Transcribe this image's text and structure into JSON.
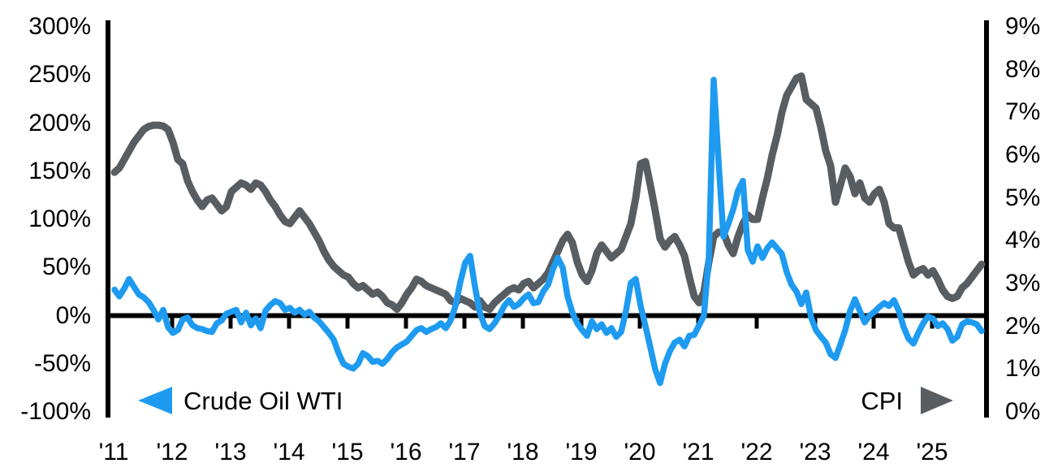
{
  "legend": {
    "wti_label": "Crude Oil WTI",
    "cpi_label": "CPI"
  },
  "colors": {
    "wti_blue": "#1E9BF0",
    "cpi_gray": "#585D62",
    "axis_black": "#000000",
    "background": "#FFFFFF"
  },
  "chart_data": {
    "type": "line",
    "title": "",
    "frequency": "monthly",
    "start": "2011-01",
    "end": "2025-11",
    "grid": "off",
    "legend_position": "bottom-inside",
    "x_tick_labels": [
      "'11",
      "'12",
      "'13",
      "'14",
      "'15",
      "'16",
      "'17",
      "'18",
      "'19",
      "'20",
      "'21",
      "'22",
      "'23",
      "'24",
      "'25"
    ],
    "left_axis": {
      "title": "",
      "unit": "%",
      "min": -100,
      "max": 300,
      "tick_labels": [
        "300%",
        "250%",
        "200%",
        "150%",
        "100%",
        "50%",
        "0%",
        "-50%",
        "-100%"
      ],
      "tick_values": [
        300,
        250,
        200,
        150,
        100,
        50,
        0,
        -50,
        -100
      ]
    },
    "right_axis": {
      "title": "",
      "unit": "%",
      "min": 0,
      "max": 9,
      "tick_labels": [
        "9%",
        "8%",
        "7%",
        "6%",
        "5%",
        "4%",
        "3%",
        "2%",
        "1%",
        "0%"
      ],
      "tick_values": [
        9,
        8,
        7,
        6,
        5,
        4,
        3,
        2,
        1,
        0
      ]
    },
    "series": [
      {
        "name": "CPI",
        "axis": "right",
        "color": "#585D62",
        "stroke_width": 9,
        "values": [
          5.6,
          5.7,
          5.9,
          6.1,
          6.3,
          6.45,
          6.6,
          6.67,
          6.7,
          6.7,
          6.68,
          6.6,
          6.3,
          5.9,
          5.8,
          5.4,
          5.15,
          4.95,
          4.8,
          4.95,
          5.0,
          4.85,
          4.7,
          4.8,
          5.15,
          5.25,
          5.35,
          5.3,
          5.2,
          5.35,
          5.3,
          5.15,
          4.95,
          4.8,
          4.6,
          4.45,
          4.4,
          4.55,
          4.7,
          4.55,
          4.4,
          4.2,
          4.0,
          3.75,
          3.55,
          3.4,
          3.3,
          3.2,
          3.15,
          3.0,
          2.9,
          2.95,
          2.85,
          2.75,
          2.8,
          2.7,
          2.55,
          2.5,
          2.4,
          2.55,
          2.75,
          2.9,
          3.1,
          3.05,
          2.95,
          2.9,
          2.85,
          2.8,
          2.75,
          2.6,
          2.55,
          2.65,
          2.6,
          2.55,
          2.45,
          2.6,
          2.45,
          2.4,
          2.55,
          2.65,
          2.75,
          2.85,
          2.9,
          2.85,
          3.0,
          3.05,
          2.9,
          3.0,
          3.1,
          3.25,
          3.5,
          3.75,
          4.0,
          4.15,
          3.95,
          3.5,
          3.2,
          3.05,
          3.3,
          3.7,
          3.9,
          3.75,
          3.6,
          3.7,
          3.8,
          4.1,
          4.4,
          5.0,
          5.8,
          5.85,
          5.3,
          4.7,
          4.05,
          3.85,
          4.0,
          4.1,
          3.9,
          3.65,
          3.15,
          2.7,
          2.55,
          2.8,
          3.5,
          4.1,
          4.2,
          4.2,
          3.9,
          3.7,
          4.1,
          4.4,
          4.6,
          4.5,
          4.5,
          5.0,
          5.45,
          6.0,
          6.45,
          7.0,
          7.4,
          7.6,
          7.8,
          7.85,
          7.3,
          7.2,
          7.1,
          6.65,
          6.1,
          5.75,
          4.9,
          5.3,
          5.7,
          5.5,
          5.1,
          5.35,
          5.0,
          4.9,
          5.1,
          5.2,
          4.9,
          4.4,
          4.3,
          4.3,
          3.9,
          3.5,
          3.2,
          3.3,
          3.35,
          3.2,
          3.3,
          3.1,
          2.85,
          2.7,
          2.65,
          2.7,
          2.9,
          3.0,
          3.15,
          3.3,
          3.45
        ]
      },
      {
        "name": "Crude Oil WTI",
        "axis": "left",
        "color": "#1E9BF0",
        "stroke_width": 7.5,
        "values": [
          27,
          20,
          28,
          38,
          30,
          22,
          19,
          14,
          6,
          -4,
          6,
          -12,
          -18,
          -15,
          -4,
          -2,
          -10,
          -13,
          -14,
          -16,
          -17,
          -8,
          -5,
          2,
          4,
          6,
          -7,
          3,
          -10,
          -3,
          -13,
          5,
          11,
          15,
          13,
          6,
          8,
          3,
          6,
          1,
          4,
          -2,
          -6,
          -12,
          -18,
          -25,
          -39,
          -50,
          -53,
          -55,
          -50,
          -39,
          -42,
          -48,
          -47,
          -50,
          -45,
          -38,
          -33,
          -30,
          -27,
          -21,
          -15,
          -13,
          -17,
          -14,
          -12,
          -8,
          -13,
          -5,
          10,
          35,
          55,
          62,
          30,
          3,
          -11,
          -14,
          -8,
          0,
          10,
          16,
          9,
          12,
          18,
          22,
          13,
          14,
          25,
          32,
          48,
          60,
          50,
          20,
          3,
          -8,
          -15,
          -21,
          -6,
          -14,
          -9,
          -18,
          -13,
          -22,
          -17,
          5,
          34,
          38,
          10,
          -11,
          -33,
          -56,
          -70,
          -50,
          -37,
          -28,
          -25,
          -32,
          -21,
          -20,
          -10,
          0,
          60,
          245,
          160,
          82,
          95,
          110,
          130,
          140,
          68,
          56,
          72,
          60,
          70,
          76,
          70,
          64,
          45,
          32,
          25,
          12,
          24,
          -2,
          -15,
          -22,
          -28,
          -40,
          -44,
          -30,
          -15,
          5,
          17,
          5,
          -7,
          0,
          4,
          9,
          13,
          10,
          16,
          5,
          -12,
          -24,
          -29,
          -18,
          -8,
          -1,
          -3,
          -11,
          -8,
          -14,
          -26,
          -22,
          -9,
          -6,
          -7,
          -9,
          -16
        ]
      }
    ]
  }
}
